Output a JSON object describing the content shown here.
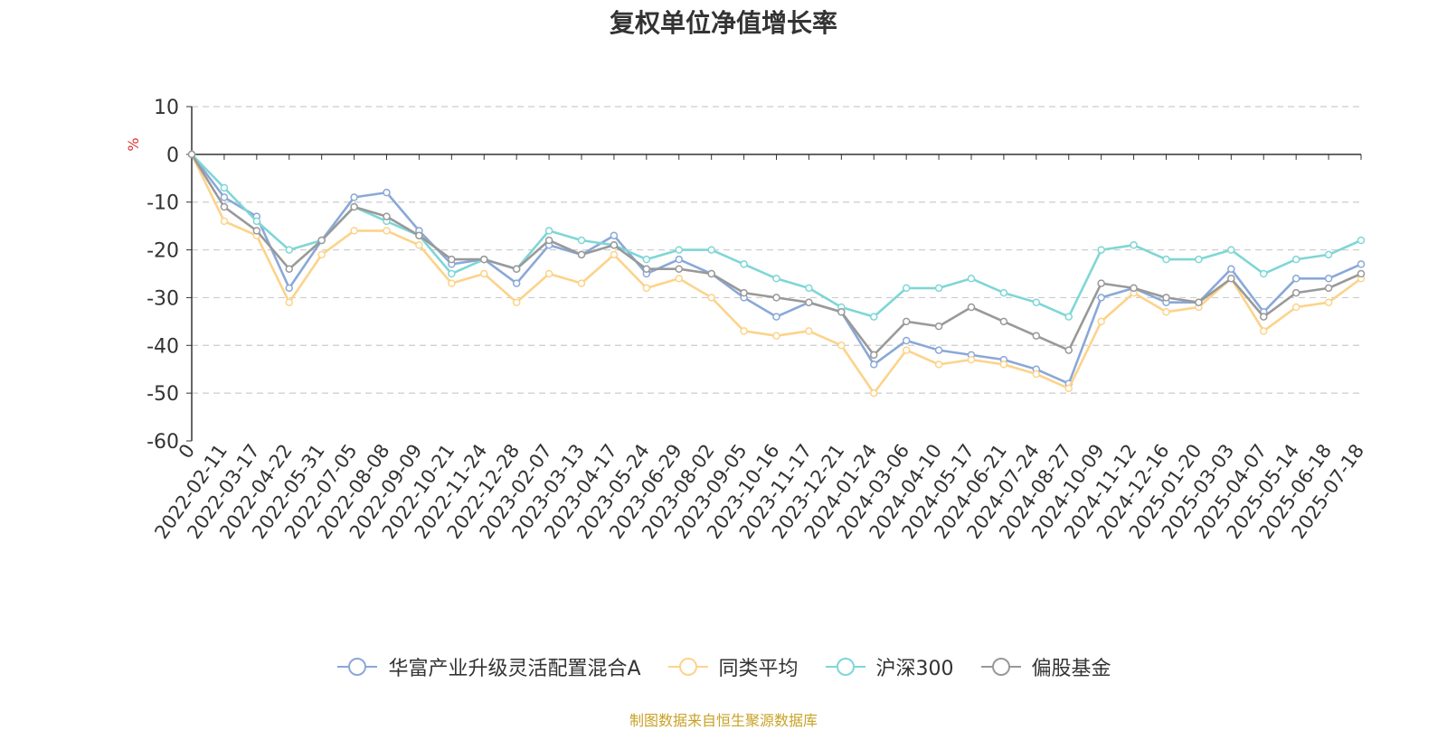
{
  "chart_data": {
    "type": "line",
    "title": "复权单位净值增长率",
    "ylabel": "%",
    "ylim": [
      -60,
      10
    ],
    "yticks": [
      10,
      0,
      -10,
      -20,
      -30,
      -40,
      -50,
      -60
    ],
    "grid": true,
    "legend_position": "bottom",
    "x_tick_labels": [
      "0",
      "2022-02-11",
      "2022-03-17",
      "2022-04-22",
      "2022-05-31",
      "2022-07-05",
      "2022-08-08",
      "2022-09-09",
      "2022-10-21",
      "2022-11-24",
      "2022-12-28",
      "2023-02-07",
      "2023-03-13",
      "2023-04-17",
      "2023-05-24",
      "2023-06-29",
      "2023-08-02",
      "2023-09-05",
      "2023-10-16",
      "2023-11-17",
      "2023-12-21",
      "2024-01-24",
      "2024-03-06",
      "2024-04-10",
      "2024-05-17",
      "2024-06-21",
      "2024-07-24",
      "2024-08-27",
      "2024-10-09",
      "2024-11-12",
      "2024-12-16",
      "2025-01-20",
      "2025-03-03",
      "2025-04-07",
      "2025-05-14",
      "2025-06-18",
      "2025-07-18"
    ],
    "x": [
      "0",
      "2022-02-11",
      "2022-03-17",
      "2022-04-22",
      "2022-05-31",
      "2022-07-05",
      "2022-08-08",
      "2022-09-09",
      "2022-10-21",
      "2022-11-24",
      "2022-12-28",
      "2023-02-07",
      "2023-03-13",
      "2023-04-17",
      "2023-05-24",
      "2023-06-29",
      "2023-08-02",
      "2023-09-05",
      "2023-10-16",
      "2023-11-17",
      "2023-12-21",
      "2024-01-24",
      "2024-03-06",
      "2024-04-10",
      "2024-05-17",
      "2024-06-21",
      "2024-07-24",
      "2024-08-27",
      "2024-10-09",
      "2024-11-12",
      "2024-12-16",
      "2025-01-20",
      "2025-03-03",
      "2025-04-07",
      "2025-05-14",
      "2025-06-18",
      "2025-07-18"
    ],
    "series": [
      {
        "name": "华富产业升级灵活配置混合A",
        "color": "#8aa8d8",
        "values": [
          0,
          -9,
          -13,
          -28,
          -18,
          -9,
          -8,
          -16,
          -23,
          -22,
          -27,
          -19,
          -21,
          -17,
          -25,
          -22,
          -25,
          -30,
          -34,
          -31,
          -33,
          -44,
          -39,
          -41,
          -42,
          -43,
          -45,
          -48,
          -30,
          -28,
          -31,
          -31,
          -24,
          -33,
          -26,
          -26,
          -23
        ]
      },
      {
        "name": "同类平均",
        "color": "#fcd38a",
        "values": [
          0,
          -14,
          -17,
          -31,
          -21,
          -16,
          -16,
          -19,
          -27,
          -25,
          -31,
          -25,
          -27,
          -21,
          -28,
          -26,
          -30,
          -37,
          -38,
          -37,
          -40,
          -50,
          -41,
          -44,
          -43,
          -44,
          -46,
          -49,
          -35,
          -29,
          -33,
          -32,
          -26,
          -37,
          -32,
          -31,
          -26
        ]
      },
      {
        "name": "沪深300",
        "color": "#7fd6d6",
        "values": [
          0,
          -7,
          -14,
          -20,
          -18,
          -11,
          -14,
          -17,
          -25,
          -22,
          -24,
          -16,
          -18,
          -19,
          -22,
          -20,
          -20,
          -23,
          -26,
          -28,
          -32,
          -34,
          -28,
          -28,
          -26,
          -29,
          -31,
          -34,
          -20,
          -19,
          -22,
          -22,
          -20,
          -25,
          -22,
          -21,
          -18
        ]
      },
      {
        "name": "偏股基金",
        "color": "#999999",
        "values": [
          0,
          -11,
          -16,
          -24,
          -18,
          -11,
          -13,
          -17,
          -22,
          -22,
          -24,
          -18,
          -21,
          -19,
          -24,
          -24,
          -25,
          -29,
          -30,
          -31,
          -33,
          -42,
          -35,
          -36,
          -32,
          -35,
          -38,
          -41,
          -27,
          -28,
          -30,
          -31,
          -26,
          -34,
          -29,
          -28,
          -25
        ]
      }
    ]
  },
  "source_note": "制图数据来自恒生聚源数据库"
}
